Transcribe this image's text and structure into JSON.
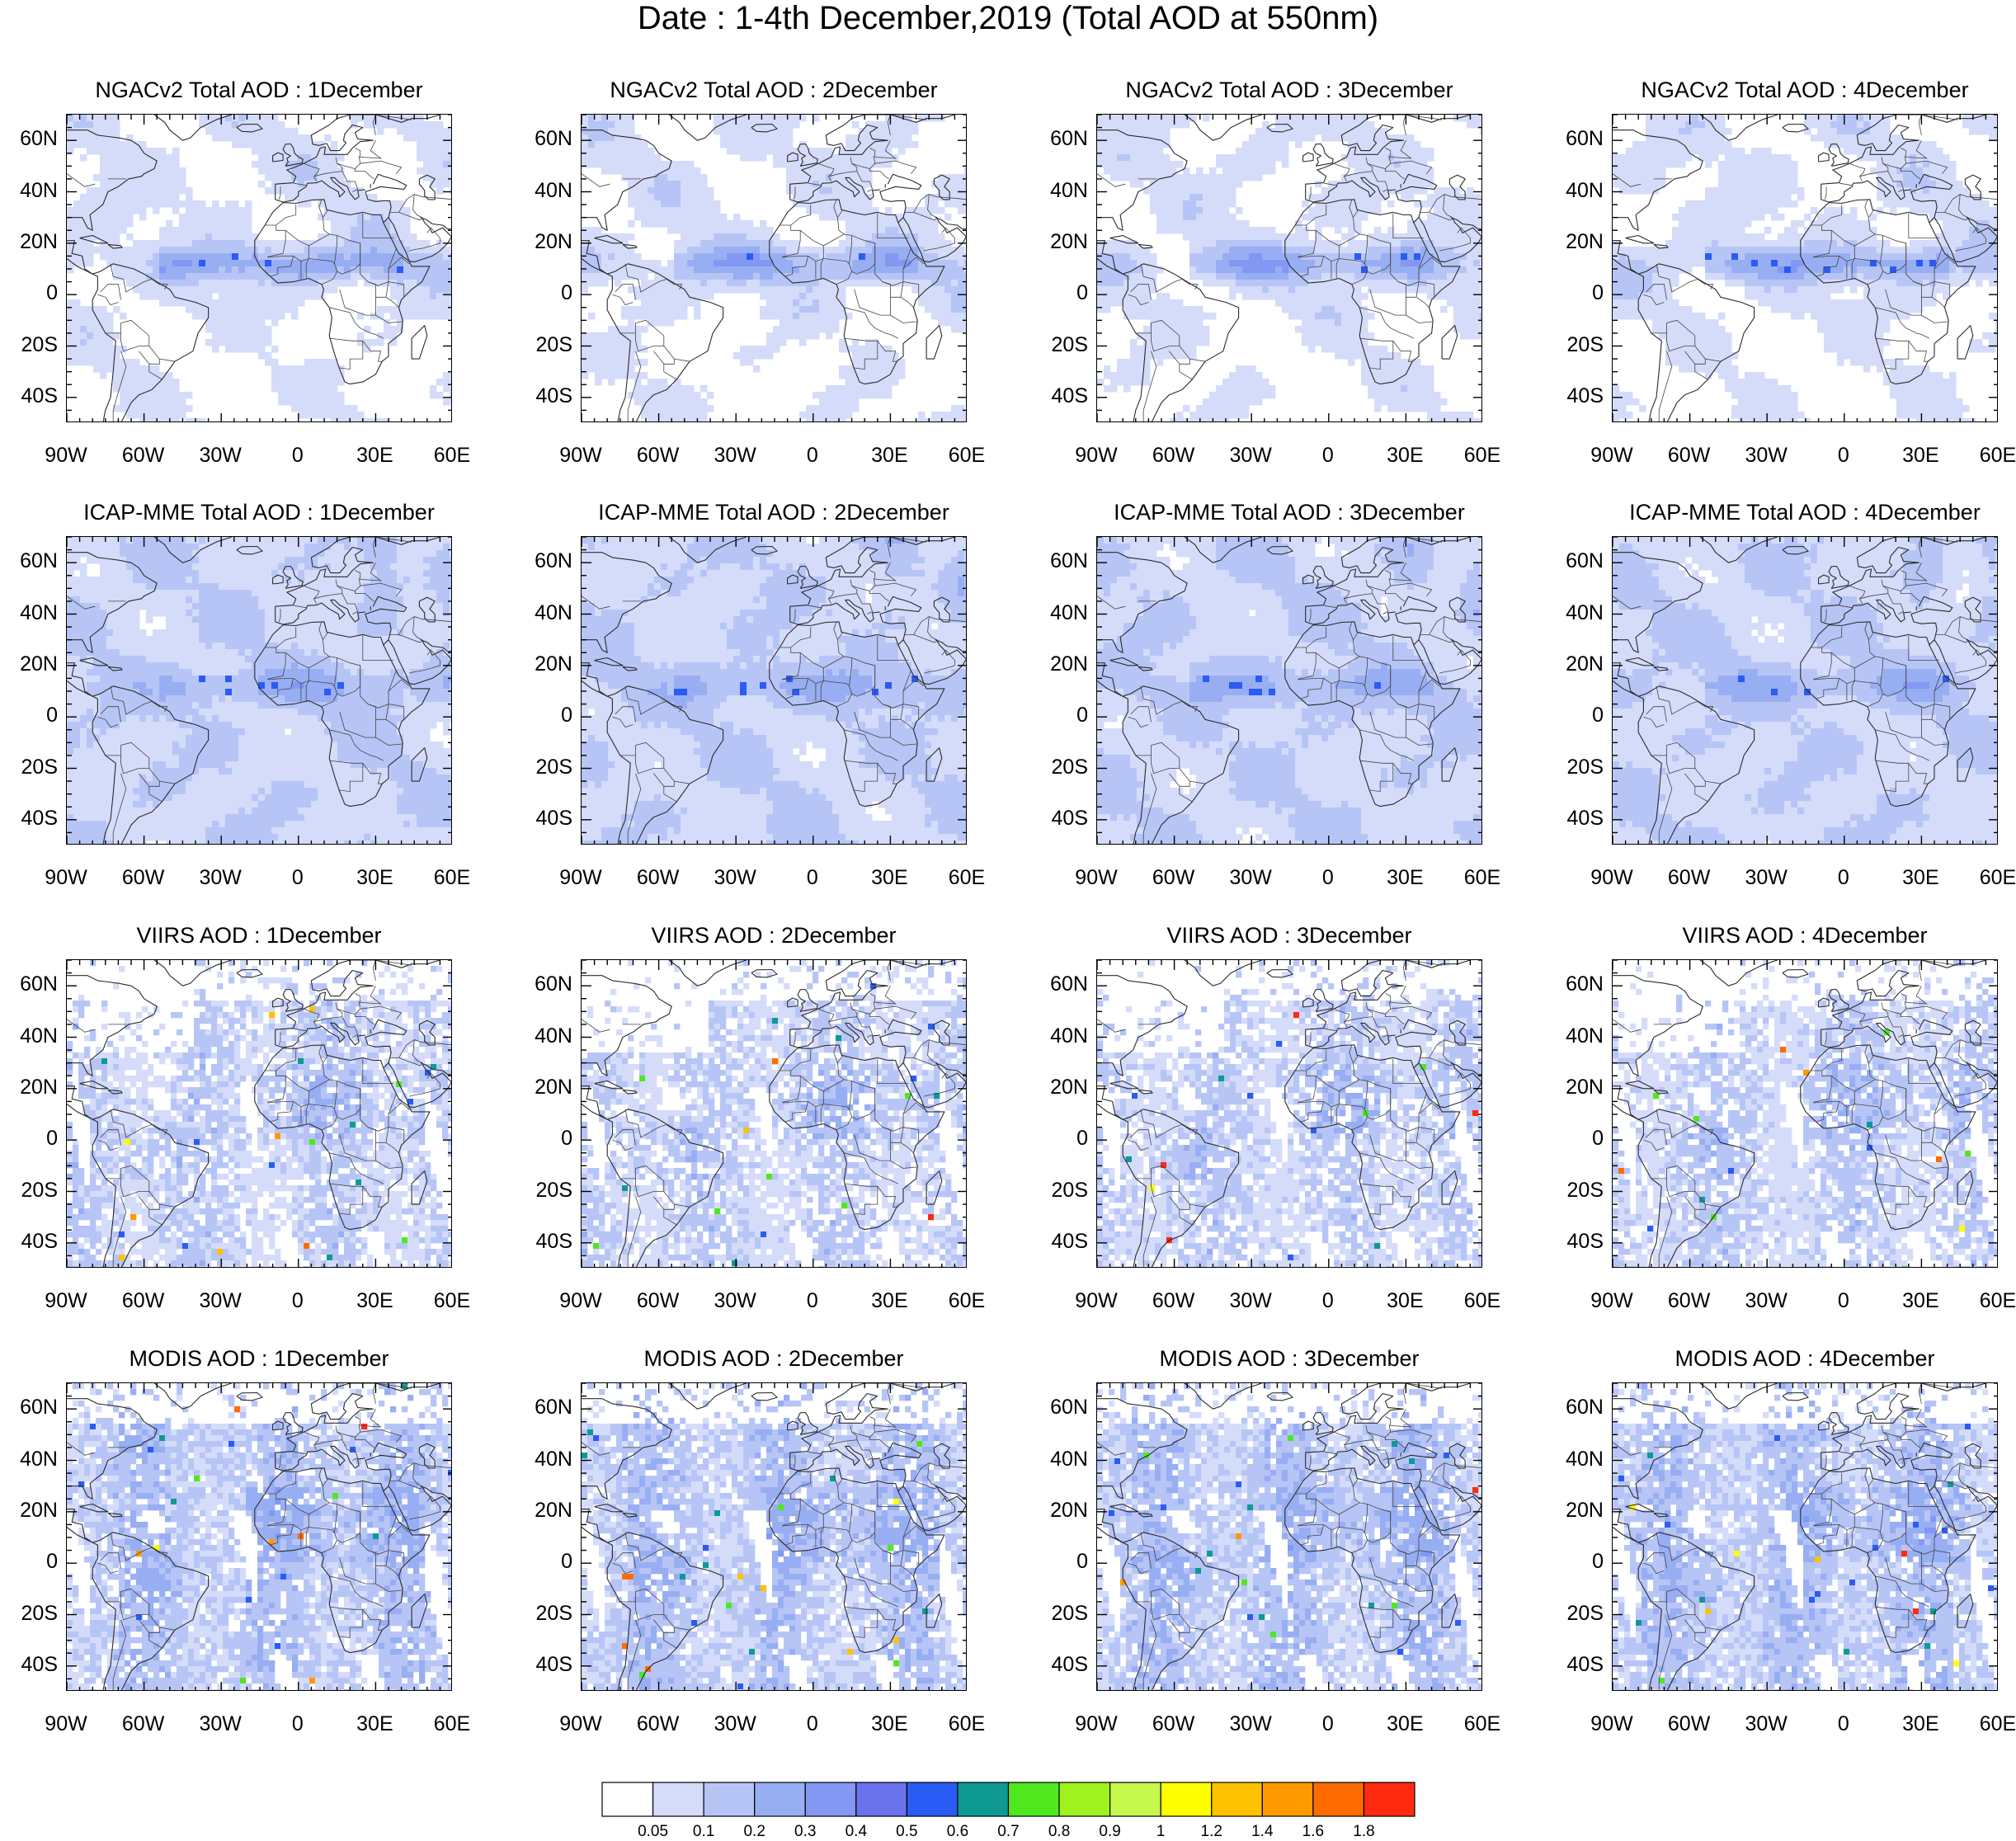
{
  "title": "Date : 1-4th December,2019 (Total AOD at 550nm)",
  "lat_labels": [
    "60N",
    "40N",
    "20N",
    "0",
    "20S",
    "40S"
  ],
  "lon_labels": [
    "90W",
    "60W",
    "30W",
    "0",
    "30E",
    "60E"
  ],
  "rows": [
    {
      "model": "NGACv2",
      "style": "smooth-low",
      "panels": [
        {
          "title": "NGACv2 Total AOD : 1December"
        },
        {
          "title": "NGACv2 Total AOD : 2December"
        },
        {
          "title": "NGACv2 Total AOD : 3December"
        },
        {
          "title": "NGACv2 Total AOD : 4December"
        }
      ]
    },
    {
      "model": "ICAP-MME",
      "style": "smooth-high",
      "panels": [
        {
          "title": "ICAP-MME Total AOD : 1December"
        },
        {
          "title": "ICAP-MME Total AOD : 2December"
        },
        {
          "title": "ICAP-MME Total AOD : 3December"
        },
        {
          "title": "ICAP-MME Total AOD : 4December"
        }
      ]
    },
    {
      "model": "VIIRS",
      "style": "satellite-sparse",
      "panels": [
        {
          "title": "VIIRS AOD : 1December"
        },
        {
          "title": "VIIRS AOD : 2December"
        },
        {
          "title": "VIIRS AOD : 3December"
        },
        {
          "title": "VIIRS AOD : 4December"
        }
      ]
    },
    {
      "model": "MODIS",
      "style": "satellite-swaths",
      "panels": [
        {
          "title": "MODIS AOD : 1December"
        },
        {
          "title": "MODIS AOD : 2December"
        },
        {
          "title": "MODIS AOD : 3December"
        },
        {
          "title": "MODIS AOD : 4December"
        }
      ]
    }
  ],
  "colorbar": {
    "labels": [
      "0.05",
      "0.1",
      "0.2",
      "0.3",
      "0.4",
      "0.5",
      "0.6",
      "0.7",
      "0.8",
      "0.9",
      "1",
      "1.2",
      "1.4",
      "1.6",
      "1.8"
    ],
    "colors": [
      "#ffffff",
      "#d4dcfa",
      "#b7c5f6",
      "#98aef3",
      "#8398f3",
      "#6a72ec",
      "#2a5cf5",
      "#0e9a93",
      "#4fe81f",
      "#9ff21e",
      "#c6f94c",
      "#ffff00",
      "#ffc200",
      "#ff9900",
      "#ff6b00",
      "#ff2a10"
    ]
  }
}
